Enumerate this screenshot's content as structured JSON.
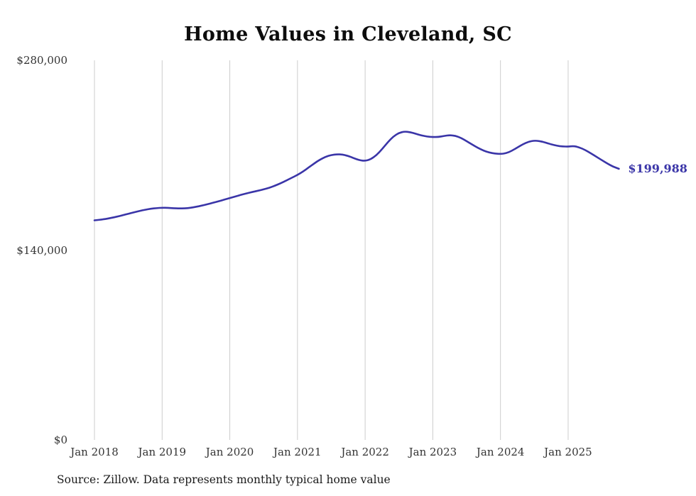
{
  "page": {
    "background": "#ffffff"
  },
  "chart_data": {
    "type": "line",
    "title": "Home Values in Cleveland, SC",
    "series_name": "Typical home value",
    "source_note": "Source: Zillow. Data represents monthly typical home value",
    "line_color": "#3a35a8",
    "grid_color": "#cccccc",
    "grid": "vertical-only",
    "legend": "none",
    "ylim": [
      0,
      280000
    ],
    "yticks": [
      0,
      140000,
      280000
    ],
    "ytick_labels": [
      "$0",
      "$140,000",
      "$280,000"
    ],
    "xtick_labels": [
      "Jan 2018",
      "Jan 2019",
      "Jan 2020",
      "Jan 2021",
      "Jan 2022",
      "Jan 2023",
      "Jan 2024",
      "Jan 2025"
    ],
    "end_label": "$199,988",
    "last_value": 199988,
    "x": [
      "Jan 2018",
      "Feb 2018",
      "Mar 2018",
      "Apr 2018",
      "May 2018",
      "Jun 2018",
      "Jul 2018",
      "Aug 2018",
      "Sep 2018",
      "Oct 2018",
      "Nov 2018",
      "Dec 2018",
      "Jan 2019",
      "Feb 2019",
      "Mar 2019",
      "Apr 2019",
      "May 2019",
      "Jun 2019",
      "Jul 2019",
      "Aug 2019",
      "Sep 2019",
      "Oct 2019",
      "Nov 2019",
      "Dec 2019",
      "Jan 2020",
      "Feb 2020",
      "Mar 2020",
      "Apr 2020",
      "May 2020",
      "Jun 2020",
      "Jul 2020",
      "Aug 2020",
      "Sep 2020",
      "Oct 2020",
      "Nov 2020",
      "Dec 2020",
      "Jan 2021",
      "Feb 2021",
      "Mar 2021",
      "Apr 2021",
      "May 2021",
      "Jun 2021",
      "Jul 2021",
      "Aug 2021",
      "Sep 2021",
      "Oct 2021",
      "Nov 2021",
      "Dec 2021",
      "Jan 2022",
      "Feb 2022",
      "Mar 2022",
      "Apr 2022",
      "May 2022",
      "Jun 2022",
      "Jul 2022",
      "Aug 2022",
      "Sep 2022",
      "Oct 2022",
      "Nov 2022",
      "Dec 2022",
      "Jan 2023",
      "Feb 2023",
      "Mar 2023",
      "Apr 2023",
      "May 2023",
      "Jun 2023",
      "Jul 2023",
      "Aug 2023",
      "Sep 2023",
      "Oct 2023",
      "Nov 2023",
      "Dec 2023",
      "Jan 2024",
      "Feb 2024",
      "Mar 2024",
      "Apr 2024",
      "May 2024",
      "Jun 2024",
      "Jul 2024",
      "Aug 2024",
      "Sep 2024",
      "Oct 2024",
      "Nov 2024",
      "Dec 2024",
      "Jan 2025",
      "Feb 2025",
      "Mar 2025",
      "Apr 2025",
      "May 2025",
      "Jun 2025",
      "Jul 2025",
      "Aug 2025",
      "Sep 2025",
      "Oct 2025"
    ],
    "values": [
      162000,
      162400,
      163000,
      163800,
      164700,
      165700,
      166800,
      167900,
      168900,
      169800,
      170500,
      171000,
      171300,
      171200,
      170900,
      170700,
      170800,
      171200,
      171900,
      172800,
      173800,
      174900,
      176000,
      177200,
      178400,
      179600,
      180800,
      181900,
      182900,
      183800,
      184800,
      186000,
      187500,
      189300,
      191300,
      193400,
      195500,
      198000,
      201000,
      204000,
      206800,
      208900,
      210200,
      210700,
      210500,
      209500,
      207800,
      206300,
      205800,
      207000,
      210000,
      214500,
      219500,
      223800,
      226500,
      227500,
      227000,
      225800,
      224600,
      223800,
      223400,
      223500,
      224200,
      224800,
      224400,
      222800,
      220400,
      217800,
      215400,
      213400,
      212000,
      211200,
      210900,
      211500,
      213200,
      215700,
      218200,
      220000,
      220800,
      220400,
      219300,
      218000,
      217000,
      216500,
      216300,
      216800,
      215800,
      213900,
      211500,
      208900,
      206300,
      203800,
      201500,
      199988
    ]
  }
}
